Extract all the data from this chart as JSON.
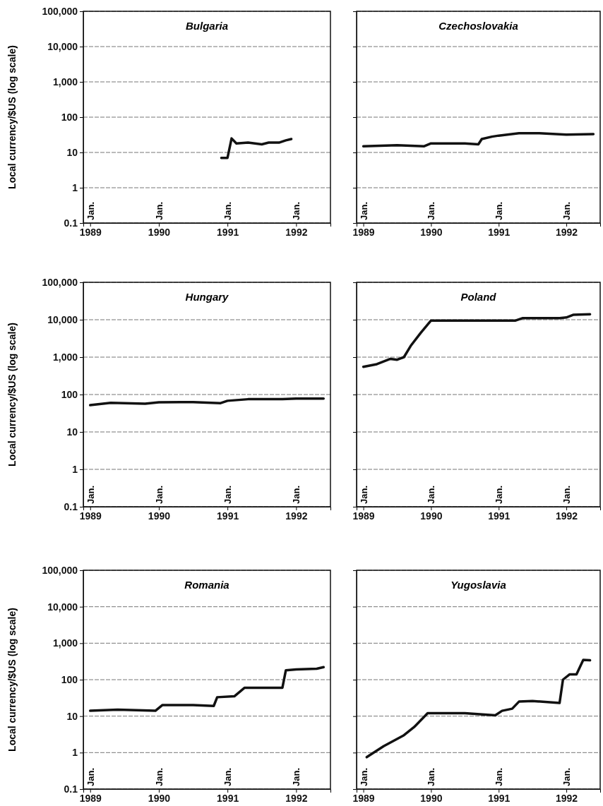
{
  "chart_data": [
    {
      "type": "line",
      "title": "Bulgaria",
      "ylabel": "Local currency/$US (log scale)",
      "log": true,
      "grid": "y",
      "xlim": [
        1988.9,
        1992.5
      ],
      "xticks": [
        1989,
        1990,
        1991,
        1992
      ],
      "ylim": [
        0.1,
        100000
      ],
      "yticks": [
        {
          "value": 0.1,
          "label": "0.1"
        },
        {
          "value": 1,
          "label": "1"
        },
        {
          "value": 10,
          "label": "10"
        },
        {
          "value": 100,
          "label": "100"
        },
        {
          "value": 1000,
          "label": "1,000"
        },
        {
          "value": 10000,
          "label": "10,000"
        },
        {
          "value": 100000,
          "label": "100,000"
        }
      ],
      "annotations": [
        "Jan.",
        "Jan.",
        "Jan.",
        "Jan."
      ],
      "series": [
        {
          "color": "#111111",
          "x": [
            1990.91,
            1991.0,
            1991.06,
            1991.13,
            1991.3,
            1991.5,
            1991.6,
            1991.75,
            1991.85,
            1991.93
          ],
          "values": [
            7,
            7,
            25,
            18,
            19,
            17,
            19,
            19,
            22,
            24
          ]
        }
      ]
    },
    {
      "type": "line",
      "title": "Czechoslovakia",
      "log": true,
      "grid": "y",
      "tick_labels": "x",
      "xlim": [
        1988.9,
        1992.5
      ],
      "xticks": [
        1989,
        1990,
        1991,
        1992
      ],
      "ylim": [
        0.1,
        100000
      ],
      "yticks": [
        {
          "value": 0.1,
          "label": null
        },
        {
          "value": 1,
          "label": null
        },
        {
          "value": 10,
          "label": null
        },
        {
          "value": 100,
          "label": null
        },
        {
          "value": 1000,
          "label": null
        },
        {
          "value": 10000,
          "label": null
        },
        {
          "value": 100000,
          "label": null
        }
      ],
      "annotations": [
        "Jan.",
        "Jan.",
        "Jan.",
        "Jan."
      ],
      "series": [
        {
          "color": "#111111",
          "x": [
            1989.0,
            1989.5,
            1989.9,
            1990.0,
            1990.5,
            1990.7,
            1990.75,
            1990.9,
            1991.0,
            1991.3,
            1991.6,
            1992.0,
            1992.4
          ],
          "values": [
            15,
            16,
            15,
            18,
            18,
            17,
            24,
            28,
            30,
            35,
            35,
            32,
            33
          ]
        }
      ]
    },
    {
      "type": "line",
      "title": "Hungary",
      "ylabel": "Local currency/$US (log scale)",
      "log": true,
      "grid": "y",
      "xlim": [
        1988.9,
        1992.5
      ],
      "xticks": [
        1989,
        1990,
        1991,
        1992
      ],
      "ylim": [
        0.1,
        100000
      ],
      "yticks": [
        {
          "value": 0.1,
          "label": "0.1"
        },
        {
          "value": 1,
          "label": "1"
        },
        {
          "value": 10,
          "label": "10"
        },
        {
          "value": 100,
          "label": "100"
        },
        {
          "value": 1000,
          "label": "1,000"
        },
        {
          "value": 10000,
          "label": "10,000"
        },
        {
          "value": 100000,
          "label": "100,000"
        }
      ],
      "annotations": [
        "Jan.",
        "Jan.",
        "Jan.",
        "Jan."
      ],
      "series": [
        {
          "color": "#111111",
          "x": [
            1989.0,
            1989.3,
            1989.8,
            1990.0,
            1990.5,
            1990.9,
            1991.0,
            1991.3,
            1991.8,
            1992.0,
            1992.4
          ],
          "values": [
            52,
            60,
            57,
            62,
            63,
            59,
            68,
            75,
            75,
            78,
            78
          ]
        }
      ]
    },
    {
      "type": "line",
      "title": "Poland",
      "log": true,
      "grid": "y",
      "tick_labels": "x",
      "xlim": [
        1988.9,
        1992.5
      ],
      "xticks": [
        1989,
        1990,
        1991,
        1992
      ],
      "ylim": [
        0.1,
        100000
      ],
      "yticks": [
        {
          "value": 0.1,
          "label": null
        },
        {
          "value": 1,
          "label": null
        },
        {
          "value": 10,
          "label": null
        },
        {
          "value": 100,
          "label": null
        },
        {
          "value": 1000,
          "label": null
        },
        {
          "value": 10000,
          "label": null
        },
        {
          "value": 100000,
          "label": null
        }
      ],
      "annotations": [
        "Jan.",
        "Jan.",
        "Jan.",
        "Jan."
      ],
      "series": [
        {
          "color": "#111111",
          "x": [
            1989.0,
            1989.2,
            1989.4,
            1989.5,
            1989.6,
            1989.7,
            1989.85,
            1990.0,
            1990.5,
            1991.25,
            1991.35,
            1991.9,
            1992.0,
            1992.1,
            1992.35
          ],
          "values": [
            550,
            650,
            900,
            850,
            1000,
            2000,
            4500,
            9500,
            9500,
            9500,
            11000,
            11000,
            11500,
            13500,
            14000
          ]
        }
      ]
    },
    {
      "type": "line",
      "title": "Romania",
      "ylabel": "Local currency/$US (log scale)",
      "log": true,
      "grid": "y",
      "xlim": [
        1988.9,
        1992.5
      ],
      "xticks": [
        1989,
        1990,
        1991,
        1992
      ],
      "ylim": [
        0.1,
        100000
      ],
      "yticks": [
        {
          "value": 0.1,
          "label": "0.1"
        },
        {
          "value": 1,
          "label": "1"
        },
        {
          "value": 10,
          "label": "10"
        },
        {
          "value": 100,
          "label": "100"
        },
        {
          "value": 1000,
          "label": "1,000"
        },
        {
          "value": 10000,
          "label": "10,000"
        },
        {
          "value": 100000,
          "label": "100,000"
        }
      ],
      "annotations": [
        "Jan.",
        "Jan.",
        "Jan.",
        "Jan."
      ],
      "series": [
        {
          "color": "#111111",
          "x": [
            1989.0,
            1989.4,
            1989.95,
            1990.05,
            1990.5,
            1990.8,
            1990.85,
            1991.1,
            1991.25,
            1991.8,
            1991.85,
            1992.0,
            1992.3,
            1992.4
          ],
          "values": [
            14,
            15,
            14,
            20,
            20,
            19,
            33,
            35,
            60,
            60,
            180,
            190,
            200,
            220
          ]
        }
      ]
    },
    {
      "type": "line",
      "title": "Yugoslavia",
      "log": true,
      "grid": "y",
      "tick_labels": "x",
      "xlim": [
        1988.9,
        1992.5
      ],
      "xticks": [
        1989,
        1990,
        1991,
        1992
      ],
      "ylim": [
        0.1,
        100000
      ],
      "yticks": [
        {
          "value": 0.1,
          "label": null
        },
        {
          "value": 1,
          "label": null
        },
        {
          "value": 10,
          "label": null
        },
        {
          "value": 100,
          "label": null
        },
        {
          "value": 1000,
          "label": null
        },
        {
          "value": 10000,
          "label": null
        },
        {
          "value": 100000,
          "label": null
        }
      ],
      "annotations": [
        "Jan.",
        "Jan.",
        "Jan.",
        "Jan."
      ],
      "series": [
        {
          "color": "#111111",
          "x": [
            1989.05,
            1989.3,
            1989.6,
            1989.75,
            1989.95,
            1990.5,
            1990.95,
            1991.05,
            1991.2,
            1991.3,
            1991.5,
            1991.9,
            1991.95,
            1992.05,
            1992.15,
            1992.25,
            1992.35
          ],
          "values": [
            0.75,
            1.5,
            3,
            5,
            12,
            12,
            10.5,
            14,
            16,
            25,
            26,
            23,
            100,
            140,
            140,
            350,
            340
          ]
        }
      ]
    }
  ]
}
